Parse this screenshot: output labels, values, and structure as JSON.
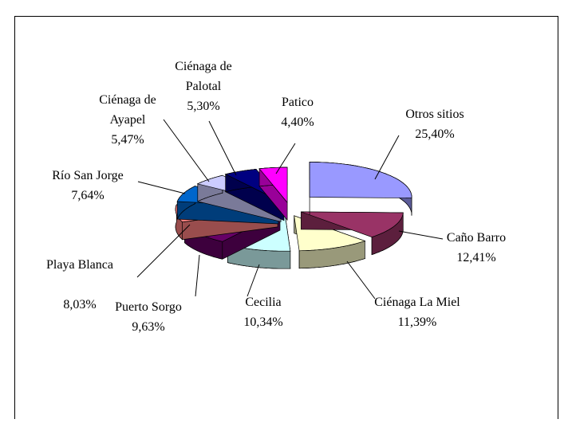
{
  "chart_data": {
    "type": "pie",
    "categories": [
      "Otros sitios",
      "Caño Barro",
      "Ciénaga La Miel",
      "Cecilia",
      "Puerto Sorgo",
      "Playa Blanca",
      "Río San Jorge",
      "Ciénaga de Ayapel",
      "Ciénaga de Palotal",
      "Patico"
    ],
    "values": [
      25.4,
      12.41,
      11.39,
      10.34,
      9.63,
      8.03,
      7.64,
      5.47,
      5.3,
      4.4
    ],
    "value_labels": [
      "25,40%",
      "12,41%",
      "11,39%",
      "10,34%",
      "9,63%",
      "8,03%",
      "7,64%",
      "5,47%",
      "5,30%",
      "4,40%"
    ],
    "colors": [
      "#9999ff",
      "#993366",
      "#ffffcc",
      "#ccffff",
      "#660066",
      "#ff8080",
      "#0066cc",
      "#ccccff",
      "#000080",
      "#ff00ff"
    ]
  }
}
